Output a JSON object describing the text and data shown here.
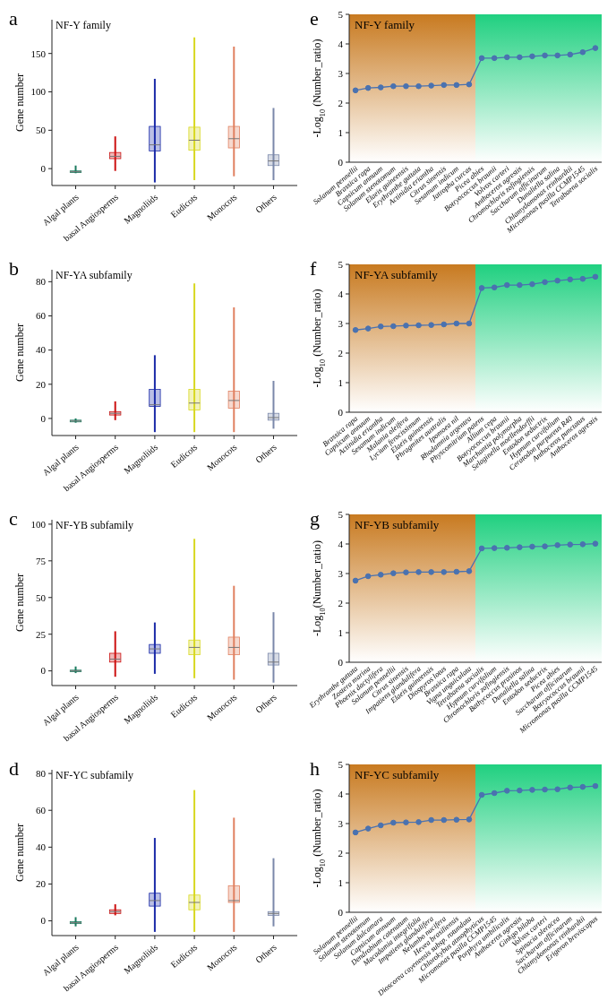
{
  "chart_data": [
    {
      "type": "box",
      "title": "NF-Y family",
      "ylabel": "Gene number",
      "annotations": [
        "a"
      ],
      "categories": [
        "Algal plants",
        "basal Angiosperms",
        "Magnoliids",
        "Eudicots",
        "Monocots",
        "Others"
      ],
      "colors": [
        "#1a7a5e",
        "#cc1010",
        "#1a2aa8",
        "#d8d820",
        "#e08060",
        "#7a88aa"
      ],
      "ylim": [
        -22,
        194
      ],
      "yticks": [
        0,
        50,
        100,
        150
      ],
      "boxes": [
        {
          "low": -6,
          "q1": -5,
          "median": -4,
          "q3": -3,
          "high": 4
        },
        {
          "low": -3,
          "q1": 13,
          "median": 16,
          "q3": 21,
          "high": 42
        },
        {
          "low": -18,
          "q1": 23,
          "median": 31,
          "q3": 55,
          "high": 117
        },
        {
          "low": -15,
          "q1": 24,
          "median": 37,
          "q3": 54,
          "high": 171
        },
        {
          "low": -10,
          "q1": 27,
          "median": 39,
          "q3": 55,
          "high": 159
        },
        {
          "low": -15,
          "q1": 4,
          "median": 10,
          "q3": 18,
          "high": 79
        }
      ]
    },
    {
      "type": "line",
      "title": "NF-Y family",
      "ylabel": "-Log$_{10}$ (Number_ratio)",
      "annotations": [
        "e"
      ],
      "marker": "circle",
      "ylim": [
        0,
        5
      ],
      "yticks": [
        0,
        1,
        2,
        3,
        4,
        5
      ],
      "categories": [
        "Solanum pennellii",
        "Brassica rapa",
        "Capsicum annuum",
        "Solanum stenotomum",
        "Elaeis guineensis",
        "Erythranthe guttata",
        "Actinidia eriantha",
        "Citrus sinensis",
        "Sesamum indicum",
        "Jatropha curcas",
        "Picea abies",
        "Botryococcus braunii",
        "Volvox carteri",
        "Anthoceros agrestis",
        "Chromochloris zofingiensis",
        "Saccharum officinarum",
        "Dunaliella salina",
        "Chlamydomonas reinhardtii",
        "Micromonas pusilla CCMP1545",
        "Tetrabaena socialis"
      ],
      "bands": [
        {
          "axis": "x",
          "from": "Solanum pennellii",
          "to": "Jatropha curcas",
          "color": "#c87a20"
        },
        {
          "axis": "x",
          "from": "Picea abies",
          "to": "Tetrabaena socialis",
          "color": "#20d080"
        }
      ],
      "series": [
        {
          "color": "#4a72b0",
          "values": [
            2.43,
            2.51,
            2.53,
            2.57,
            2.57,
            2.57,
            2.59,
            2.61,
            2.61,
            2.63,
            3.52,
            3.52,
            3.55,
            3.55,
            3.58,
            3.61,
            3.61,
            3.64,
            3.72,
            3.86
          ]
        }
      ]
    },
    {
      "type": "box",
      "title": "NF-YA subfamily",
      "ylabel": "Gene number",
      "annotations": [
        "b"
      ],
      "categories": [
        "Algal plants",
        "basal Angiosperms",
        "Magnoliids",
        "Eudicots",
        "Monocots",
        "Others"
      ],
      "colors": [
        "#1a7a5e",
        "#cc1010",
        "#1a2aa8",
        "#d8d820",
        "#e08060",
        "#7a88aa"
      ],
      "ylim": [
        -10,
        87
      ],
      "yticks": [
        0,
        20,
        40,
        60,
        80
      ],
      "boxes": [
        {
          "low": -2.5,
          "q1": -2,
          "median": -1.5,
          "q3": -1,
          "high": 0
        },
        {
          "low": -1,
          "q1": 2,
          "median": 3,
          "q3": 4,
          "high": 10
        },
        {
          "low": -8,
          "q1": 7,
          "median": 8,
          "q3": 17,
          "high": 37
        },
        {
          "low": -8,
          "q1": 5,
          "median": 9,
          "q3": 17,
          "high": 79
        },
        {
          "low": -8,
          "q1": 6,
          "median": 10.5,
          "q3": 16,
          "high": 65
        },
        {
          "low": -6,
          "q1": -1,
          "median": 0.5,
          "q3": 3,
          "high": 22
        }
      ]
    },
    {
      "type": "line",
      "title": "NF-YA subfamily",
      "ylabel": "-Log$_{10}$ (Number_ratio)",
      "annotations": [
        "f"
      ],
      "marker": "circle",
      "ylim": [
        0,
        5
      ],
      "yticks": [
        0,
        1,
        2,
        3,
        4,
        5
      ],
      "categories": [
        "Brassica rapa",
        "Capsicum annuum",
        "Actinidia eriantha",
        "Sesamum indicum",
        "Malania oleifera",
        "Lycium ferocissimum",
        "Elaeis guineensis",
        "Phragmites australis",
        "Ipomoea nil",
        "Rhodamnia argentea",
        "Physcomitrium patens",
        "Allium cepa",
        "Botryococcus braunii",
        "Marchantia polymorpha",
        "Selaginella moellendorffii",
        "Entodon seductrix",
        "Hypnum curvifolium",
        "Ceratodon purpureus R40",
        "Anthoceros punctatus",
        "Anthoceros agrestis"
      ],
      "bands": [
        {
          "axis": "x",
          "from": "Brassica rapa",
          "to": "Rhodamnia argentea",
          "color": "#c87a20"
        },
        {
          "axis": "x",
          "from": "Physcomitrium patens",
          "to": "Anthoceros agrestis",
          "color": "#20d080"
        }
      ],
      "series": [
        {
          "color": "#4a72b0",
          "values": [
            2.78,
            2.83,
            2.9,
            2.91,
            2.93,
            2.94,
            2.95,
            2.97,
            3.0,
            3.0,
            4.2,
            4.22,
            4.3,
            4.3,
            4.33,
            4.4,
            4.45,
            4.49,
            4.51,
            4.58
          ]
        }
      ]
    },
    {
      "type": "box",
      "title": "NF-YB subfamily",
      "ylabel": "Gene number",
      "annotations": [
        "c"
      ],
      "categories": [
        "Algal plants",
        "basal Angiosperms",
        "Magnoliids",
        "Eudicots",
        "Monocots",
        "Others"
      ],
      "colors": [
        "#1a7a5e",
        "#cc1010",
        "#1a2aa8",
        "#d8d820",
        "#e08060",
        "#7a88aa"
      ],
      "ylim": [
        -10,
        103
      ],
      "yticks": [
        0,
        25,
        50,
        75,
        100
      ],
      "boxes": [
        {
          "low": -1.5,
          "q1": -0.5,
          "median": 0,
          "q3": 0.5,
          "high": 3
        },
        {
          "low": -4,
          "q1": 6,
          "median": 8,
          "q3": 12,
          "high": 27
        },
        {
          "low": -2,
          "q1": 12,
          "median": 15,
          "q3": 18,
          "high": 33
        },
        {
          "low": -5,
          "q1": 11,
          "median": 16,
          "q3": 21,
          "high": 90
        },
        {
          "low": -6,
          "q1": 11,
          "median": 16,
          "q3": 23,
          "high": 58
        },
        {
          "low": -8,
          "q1": 4,
          "median": 6,
          "q3": 12,
          "high": 40
        }
      ]
    },
    {
      "type": "line",
      "title": "NF-YB subfamily",
      "ylabel": "-Log$_{10}$(Number_ratio)",
      "annotations": [
        "g"
      ],
      "marker": "circle",
      "ylim": [
        0,
        5
      ],
      "yticks": [
        0,
        1,
        2,
        3,
        4,
        5
      ],
      "categories": [
        "Erythranthe guttata",
        "Zostera marina",
        "Phoenix dactylifera",
        "Solanum pennellii",
        "Citrus sinensis",
        "Impatiens glandulifera",
        "Elaeis guineensis",
        "Diospyros lotus",
        "Brassica rapa",
        "Vigna unguiculata",
        "Tetrabaena socialis",
        "Hypnum curvifolium",
        "Chromochloris zofingiensis",
        "Bathycoccus prasinos",
        "Dunaliella salina",
        "Entodon seductrix",
        "Picea abies",
        "Saccharum officinarum",
        "Botryococcus braunii",
        "Micromonas pusilla CCMP1545"
      ],
      "bands": [
        {
          "axis": "x",
          "from": "Erythranthe guttata",
          "to": "Vigna unguiculata",
          "color": "#c87a20"
        },
        {
          "axis": "x",
          "from": "Tetrabaena socialis",
          "to": "Micromonas pusilla CCMP1545",
          "color": "#20d080"
        }
      ],
      "series": [
        {
          "color": "#4a72b0",
          "values": [
            2.76,
            2.91,
            2.96,
            3.01,
            3.04,
            3.05,
            3.05,
            3.05,
            3.06,
            3.08,
            3.85,
            3.86,
            3.87,
            3.89,
            3.91,
            3.92,
            3.96,
            3.98,
            3.99,
            4.01
          ]
        }
      ]
    },
    {
      "type": "box",
      "title": "NF-YC subfamily",
      "ylabel": "Gene number",
      "annotations": [
        "d"
      ],
      "categories": [
        "Algal plants",
        "basal Angiosperms",
        "Magnoliids",
        "Eudicots",
        "Monocots",
        "Others"
      ],
      "colors": [
        "#1a7a5e",
        "#cc1010",
        "#1a2aa8",
        "#d8d820",
        "#e08060",
        "#7a88aa"
      ],
      "ylim": [
        -8,
        82
      ],
      "yticks": [
        0,
        20,
        40,
        60,
        80
      ],
      "boxes": [
        {
          "low": -3,
          "q1": -1.5,
          "median": -1,
          "q3": -0.5,
          "high": 2
        },
        {
          "low": 3,
          "q1": 4,
          "median": 5,
          "q3": 6,
          "high": 9
        },
        {
          "low": -6,
          "q1": 8,
          "median": 11,
          "q3": 15,
          "high": 45
        },
        {
          "low": -6,
          "q1": 6,
          "median": 10,
          "q3": 14,
          "high": 71
        },
        {
          "low": -6,
          "q1": 10,
          "median": 11,
          "q3": 19,
          "high": 56
        },
        {
          "low": -3,
          "q1": 3,
          "median": 4,
          "q3": 5,
          "high": 34
        }
      ]
    },
    {
      "type": "line",
      "title": "NF-YC subfamily",
      "ylabel": "-Log$_{10}$ (Number_ratio)",
      "annotations": [
        "h"
      ],
      "marker": "circle",
      "ylim": [
        0,
        5
      ],
      "yticks": [
        0,
        1,
        2,
        3,
        4,
        5
      ],
      "categories": [
        "Solanum pennellii",
        "Solanum stenotomum",
        "Solanum dulcamara",
        "Capsicum annuum",
        "Dendrobium catenatum",
        "Macadamia integrifolia",
        "Impatiens glandulifera",
        "Nelumbo nucifera",
        "Hevea brasiliensis",
        "Dioscorea cayenensis subsp. rotundata",
        "Chlorokybus atmophyticus",
        "Micromonas pusilla CCMP1545",
        "Porphyra umbilicalis",
        "Anthoceros agrestis",
        "Ginkgo biloba",
        "Volvox carteri",
        "Spinacia oleracea",
        "Saccharum officinarum",
        "Chlamydomonas reinhardtii",
        "Erigeron breviscapus"
      ],
      "bands": [
        {
          "axis": "x",
          "from": "Solanum pennellii",
          "to": "Dioscorea cayenensis subsp. rotundata",
          "color": "#c87a20"
        },
        {
          "axis": "x",
          "from": "Chlorokybus atmophyticus",
          "to": "Erigeron breviscapus",
          "color": "#20d080"
        }
      ],
      "series": [
        {
          "color": "#4a72b0",
          "values": [
            2.7,
            2.83,
            2.94,
            3.03,
            3.04,
            3.05,
            3.12,
            3.12,
            3.13,
            3.14,
            3.97,
            4.03,
            4.11,
            4.12,
            4.14,
            4.15,
            4.16,
            4.22,
            4.24,
            4.27
          ]
        }
      ]
    }
  ]
}
